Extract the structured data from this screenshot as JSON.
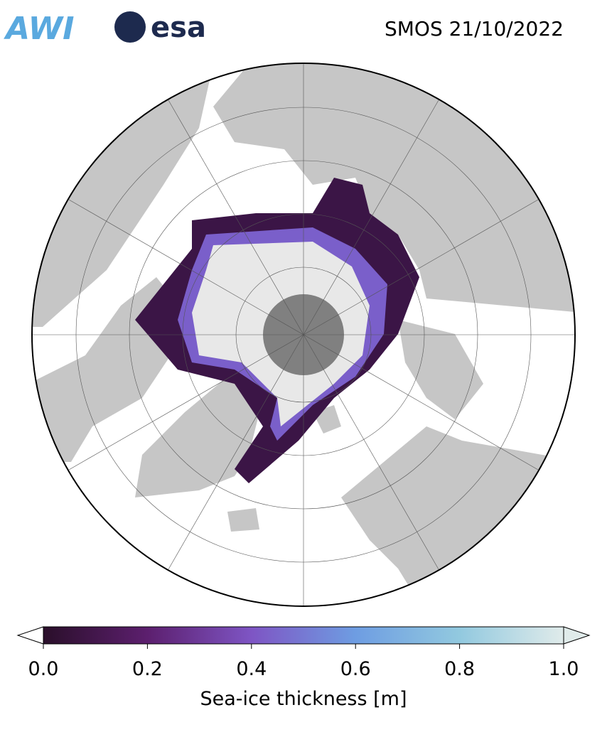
{
  "header": {
    "logos": [
      "AWI",
      "esa"
    ],
    "title": "SMOS 21/10/2022"
  },
  "colorbar": {
    "label": "Sea-ice thickness [m]",
    "lim": [
      0,
      1
    ],
    "ticks": [
      {
        "value": 0,
        "label": "0.0"
      },
      0.2,
      0.4,
      0.6,
      0.8,
      {
        "value": 1,
        "label": "1.0"
      }
    ],
    "colors": [
      "#2a0f2a",
      "#5c1f6e",
      "#7e55c4",
      "#6e9de2",
      "#92c9df",
      "#e0ebea"
    ]
  }
}
